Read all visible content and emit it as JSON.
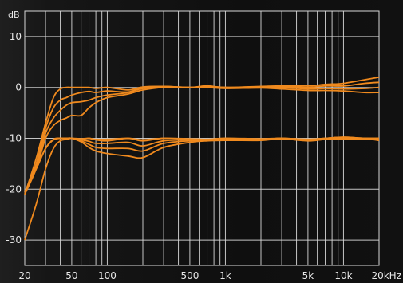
{
  "chart_data": {
    "type": "line",
    "title": "",
    "xlabel": "",
    "ylabel": "",
    "x_unit": "kHz",
    "y_unit": "dB",
    "x_scale": "log",
    "xlim": [
      20,
      20000
    ],
    "ylim": [
      -35,
      15
    ],
    "grid": true,
    "colors": {
      "line": "#f08a1e",
      "grid": "#d8d8d8",
      "text": "#e8e8e8",
      "background": "#121212"
    },
    "x_ticks": [
      {
        "value": 20,
        "label": "20"
      },
      {
        "value": 50,
        "label": "50"
      },
      {
        "value": 100,
        "label": "100"
      },
      {
        "value": 500,
        "label": "500"
      },
      {
        "value": 1000,
        "label": "1k"
      },
      {
        "value": 5000,
        "label": "5k"
      },
      {
        "value": 10000,
        "label": "10k"
      },
      {
        "value": 20000,
        "label": "20kHz"
      }
    ],
    "y_ticks": [
      {
        "value": 10,
        "label": "10"
      },
      {
        "value": 0,
        "label": "0"
      },
      {
        "value": -10,
        "label": "-10"
      },
      {
        "value": -20,
        "label": "-20"
      },
      {
        "value": -30,
        "label": "-30"
      }
    ],
    "series": [
      {
        "x": [
          20,
          25,
          30,
          35,
          40,
          45,
          50,
          60,
          70,
          80,
          100,
          150,
          200,
          300,
          500,
          700,
          1000,
          2000,
          3000,
          5000,
          7000,
          10000,
          15000,
          20000
        ],
        "values": [
          -21,
          -14,
          -7,
          -2,
          -0.3,
          0,
          0,
          0,
          0,
          -0.2,
          0,
          -0.5,
          0.1,
          0.2,
          0,
          0.3,
          0,
          0.2,
          0.3,
          0.3,
          0.6,
          0.8,
          1.5,
          2
        ]
      },
      {
        "x": [
          20,
          25,
          30,
          35,
          40,
          45,
          50,
          60,
          70,
          80,
          100,
          150,
          200,
          300,
          500,
          700,
          1000,
          2000,
          3000,
          5000,
          7000,
          10000,
          15000,
          20000
        ],
        "values": [
          -21,
          -15,
          -8,
          -4,
          -2.5,
          -2,
          -1.5,
          -1,
          -0.8,
          -1,
          -0.7,
          -0.9,
          0,
          0.2,
          0,
          0.3,
          0,
          0.1,
          0.2,
          0,
          0.3,
          0.3,
          0.8,
          1
        ]
      },
      {
        "x": [
          20,
          25,
          30,
          35,
          40,
          45,
          50,
          60,
          70,
          80,
          100,
          150,
          200,
          300,
          500,
          700,
          1000,
          2000,
          3000,
          5000,
          7000,
          10000,
          15000,
          20000
        ],
        "values": [
          -21,
          -15.5,
          -9,
          -6,
          -4.5,
          -3.5,
          -3,
          -2.8,
          -2.5,
          -2,
          -1.5,
          -1,
          -0.2,
          0.1,
          0,
          0.2,
          0,
          0,
          0,
          -0.3,
          -0.2,
          -0.3,
          -0.2,
          0
        ]
      },
      {
        "x": [
          20,
          25,
          30,
          35,
          40,
          45,
          50,
          60,
          70,
          80,
          100,
          150,
          200,
          300,
          500,
          700,
          1000,
          2000,
          3000,
          5000,
          7000,
          10000,
          15000,
          20000
        ],
        "values": [
          -21,
          -16,
          -10,
          -7.5,
          -6.5,
          -6,
          -5.5,
          -5.5,
          -4,
          -3,
          -2,
          -1.3,
          -0.5,
          0,
          0,
          0,
          -0.2,
          -0.1,
          -0.3,
          -0.6,
          -0.6,
          -0.7,
          -1,
          -1
        ]
      },
      {
        "x": [
          20,
          25,
          30,
          35,
          40,
          45,
          50,
          60,
          70,
          80,
          100,
          150,
          200,
          300,
          500,
          700,
          1000,
          2000,
          3000,
          5000,
          7000,
          10000,
          15000,
          20000
        ],
        "values": [
          -20.5,
          -16,
          -12,
          -10.2,
          -10,
          -10,
          -10,
          -10.2,
          -10,
          -10.3,
          -10.5,
          -10,
          -10.5,
          -10,
          -10.2,
          -10.3,
          -10,
          -10.2,
          -10,
          -10.2,
          -10,
          -9.8,
          -10,
          -10
        ]
      },
      {
        "x": [
          20,
          25,
          30,
          35,
          40,
          45,
          50,
          60,
          70,
          80,
          100,
          150,
          200,
          300,
          500,
          700,
          1000,
          2000,
          3000,
          5000,
          7000,
          10000,
          15000,
          20000
        ],
        "values": [
          -20.5,
          -16,
          -12,
          -10.3,
          -10,
          -10,
          -10,
          -10.3,
          -10.6,
          -11,
          -11,
          -10.8,
          -11.5,
          -10.5,
          -10.3,
          -10.3,
          -10.2,
          -10.2,
          -10,
          -10.3,
          -10.1,
          -10,
          -10,
          -10.2
        ]
      },
      {
        "x": [
          20,
          25,
          30,
          35,
          40,
          45,
          50,
          60,
          70,
          80,
          100,
          150,
          200,
          300,
          500,
          700,
          1000,
          2000,
          3000,
          5000,
          7000,
          10000,
          15000,
          20000
        ],
        "values": [
          -20.5,
          -16,
          -12,
          -10.3,
          -10,
          -10,
          -10,
          -10.5,
          -11.2,
          -11.8,
          -12,
          -12,
          -12.5,
          -11,
          -10.5,
          -10.4,
          -10.3,
          -10.3,
          -10,
          -10.4,
          -10.2,
          -10.1,
          -10,
          -10.3
        ]
      },
      {
        "x": [
          20,
          25,
          30,
          35,
          40,
          45,
          50,
          60,
          70,
          80,
          100,
          150,
          200,
          300,
          500,
          700,
          1000,
          2000,
          3000,
          5000,
          7000,
          10000,
          15000,
          20000
        ],
        "values": [
          -20.5,
          -16,
          -12,
          -10.3,
          -10,
          -10,
          -10,
          -10.7,
          -11.8,
          -12.5,
          -13,
          -13.5,
          -13.8,
          -11.8,
          -10.8,
          -10.5,
          -10.4,
          -10.4,
          -10.1,
          -10.5,
          -10.2,
          -10.2,
          -10.1,
          -10.4
        ]
      },
      {
        "x": [
          20,
          25,
          30,
          35,
          40,
          45,
          50,
          60,
          70,
          80,
          100,
          150,
          200,
          300,
          500,
          700,
          1000,
          2000,
          3000,
          5000,
          7000,
          10000,
          15000,
          20000
        ],
        "values": [
          -30,
          -23,
          -16,
          -12,
          -10.5,
          -10.2,
          -10,
          -10.1,
          -10,
          -10.2,
          -10.2,
          -10,
          -10.3,
          -10,
          -10.1,
          -10.2,
          -10,
          -10.1,
          -10,
          -10.2,
          -10,
          -9.8,
          -10,
          -10
        ]
      }
    ]
  }
}
